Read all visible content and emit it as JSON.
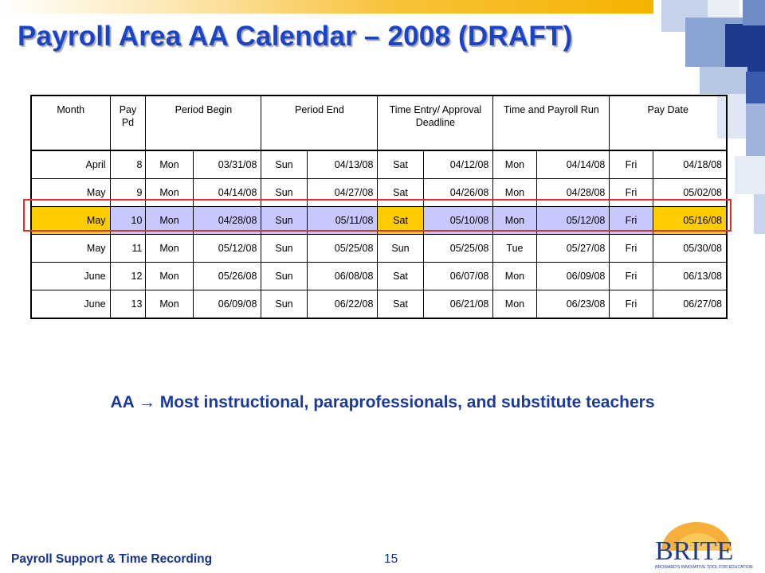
{
  "title": "Payroll Area AA Calendar – 2008 (DRAFT)",
  "table": {
    "headers": [
      {
        "label": "Month",
        "colspan": 1
      },
      {
        "label": "Pay Pd",
        "colspan": 1
      },
      {
        "label": "Period Begin",
        "colspan": 2
      },
      {
        "label": "Period End",
        "colspan": 2
      },
      {
        "label": "Time Entry/ Approval Deadline",
        "colspan": 2
      },
      {
        "label": "Time and Payroll Run",
        "colspan": 2
      },
      {
        "label": "Pay Date",
        "colspan": 2
      }
    ],
    "rows": [
      [
        "April",
        "8",
        "Mon",
        "03/31/08",
        "Sun",
        "04/13/08",
        "Sat",
        "04/12/08",
        "Mon",
        "04/14/08",
        "Fri",
        "04/18/08"
      ],
      [
        "May",
        "9",
        "Mon",
        "04/14/08",
        "Sun",
        "04/27/08",
        "Sat",
        "04/26/08",
        "Mon",
        "04/28/08",
        "Fri",
        "05/02/08"
      ],
      [
        "May",
        "10",
        "Mon",
        "04/28/08",
        "Sun",
        "05/11/08",
        "Sat",
        "05/10/08",
        "Mon",
        "05/12/08",
        "Fri",
        "05/16/08"
      ],
      [
        "May",
        "11",
        "Mon",
        "05/12/08",
        "Sun",
        "05/25/08",
        "Sun",
        "05/25/08",
        "Tue",
        "05/27/08",
        "Fri",
        "05/30/08"
      ],
      [
        "June",
        "12",
        "Mon",
        "05/26/08",
        "Sun",
        "06/08/08",
        "Sat",
        "06/07/08",
        "Mon",
        "06/09/08",
        "Fri",
        "06/13/08"
      ],
      [
        "June",
        "13",
        "Mon",
        "06/09/08",
        "Sun",
        "06/22/08",
        "Sat",
        "06/21/08",
        "Mon",
        "06/23/08",
        "Fri",
        "06/27/08"
      ]
    ],
    "highlight_row": 2,
    "highlight_color": "#c8c8ff",
    "gold_color": "#ffcc00",
    "outline_color": "#e03030"
  },
  "note": "AA  Most instructional, paraprofessionals, and substitute teachers",
  "footer": {
    "left": "Payroll Support & Time Recording",
    "page": "15"
  },
  "logo": {
    "name": "BRITE",
    "tagline": "BROWARD'S INNOVATIVE TOOL FOR EDUCATION"
  }
}
